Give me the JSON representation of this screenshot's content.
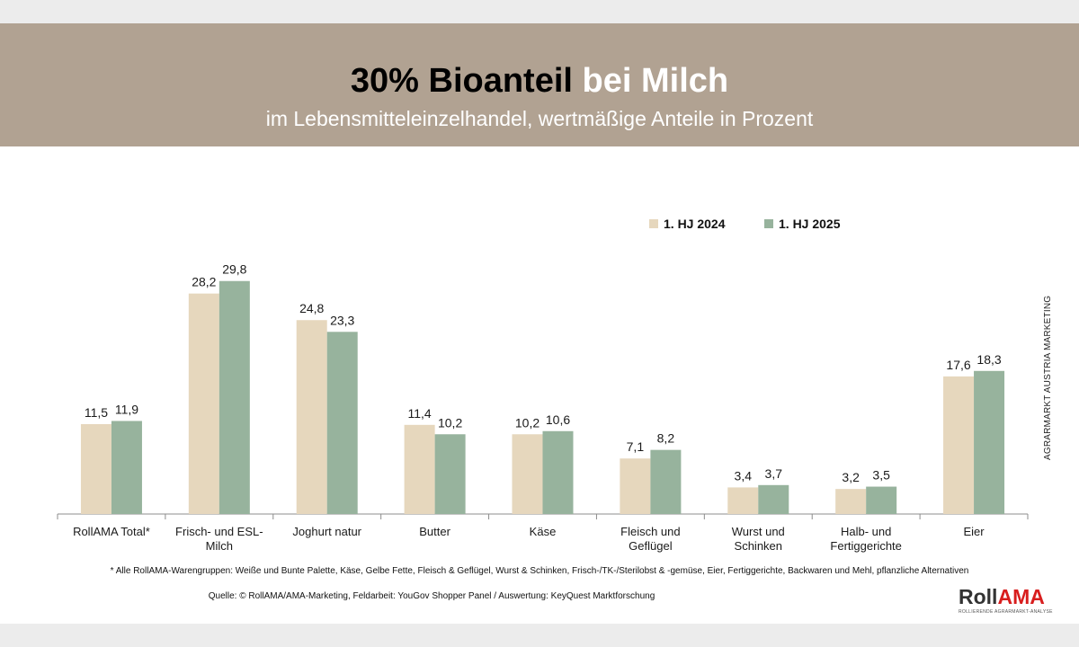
{
  "header": {
    "title_bold": "30% Bioanteil",
    "title_white": "bei Milch",
    "subtitle": "im Lebensmitteleinzelhandel, wertmäßige Anteile in Prozent"
  },
  "side_label": "AGRARMARKT AUSTRIA MARKETING",
  "footnote": "* Alle RollAMA-Warengruppen: Weiße und Bunte Palette, Käse, Gelbe Fette, Fleisch & Geflügel, Wurst & Schinken, Frisch-/TK-/Sterilobst & -gemüse, Eier, Fertiggerichte, Backwaren und Mehl, pflanzliche Alternativen",
  "source": "Quelle: © RollAMA/AMA-Marketing, Feldarbeit: YouGov Shopper Panel / Auswertung: KeyQuest Marktforschung",
  "logo": {
    "roll": "Roll",
    "ama": "AMA",
    "sub": "ROLLIERENDE AGRARMARKT-ANALYSE"
  },
  "colors": {
    "header": "#b1a292",
    "series_2024": "#e6d7bd",
    "series_2025": "#97b39d",
    "logo_red": "#d81e1e"
  },
  "chart_data": {
    "type": "bar",
    "categories": [
      [
        "RollAMA Total*"
      ],
      [
        "Frisch- und ESL-",
        "Milch"
      ],
      [
        "Joghurt natur"
      ],
      [
        "Butter"
      ],
      [
        "Käse"
      ],
      [
        "Fleisch und",
        "Geflügel"
      ],
      [
        "Wurst und",
        "Schinken"
      ],
      [
        "Halb- und",
        "Fertiggerichte"
      ],
      [
        "Eier"
      ]
    ],
    "series": [
      {
        "name": "1. HJ 2024",
        "color": "#e6d7bd",
        "values": [
          11.5,
          28.2,
          24.8,
          11.4,
          10.2,
          7.1,
          3.4,
          3.2,
          17.6
        ],
        "labels": [
          "11,5",
          "28,2",
          "24,8",
          "11,4",
          "10,2",
          "7,1",
          "3,4",
          "3,2",
          "17,6"
        ]
      },
      {
        "name": "1. HJ 2025",
        "color": "#97b39d",
        "values": [
          11.9,
          29.8,
          23.3,
          10.2,
          10.6,
          8.2,
          3.7,
          3.5,
          18.3
        ],
        "labels": [
          "11,9",
          "29,8",
          "23,3",
          "10,2",
          "10,6",
          "8,2",
          "3,7",
          "3,5",
          "18,3"
        ]
      }
    ],
    "ylim": [
      0,
      30
    ],
    "legend": "top-right",
    "grid": false
  }
}
